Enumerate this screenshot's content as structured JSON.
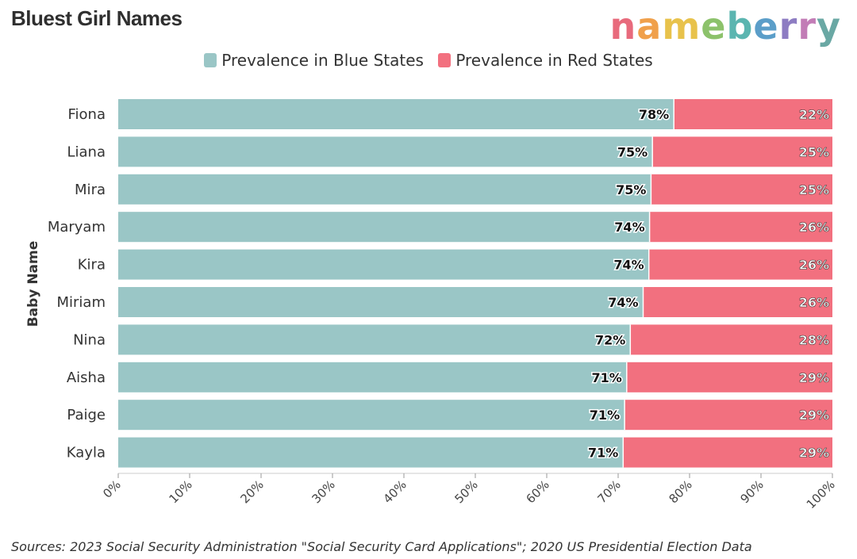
{
  "title": "Bluest Girl Names",
  "logo": {
    "text": "nameberry",
    "letters": [
      {
        "ch": "n",
        "color": "#e86a7c"
      },
      {
        "ch": "a",
        "color": "#f0a04b"
      },
      {
        "ch": "m",
        "color": "#e8c24b"
      },
      {
        "ch": "e",
        "color": "#8cc26b"
      },
      {
        "ch": "b",
        "color": "#5bb5b0"
      },
      {
        "ch": "e",
        "color": "#5b9ec9"
      },
      {
        "ch": "r",
        "color": "#8d7cc2"
      },
      {
        "ch": "r",
        "color": "#c27cb6"
      },
      {
        "ch": "y",
        "color": "#6aa8a4"
      }
    ]
  },
  "legend": {
    "blue_label": "Prevalence in Blue States",
    "red_label": "Prevalence in Red States"
  },
  "source": "Sources: 2023 Social Security Administration \"Social Security Card Applications\"; 2020 US Presidential Election Data",
  "colors": {
    "blue": "#9ac6c6",
    "red": "#f2707f"
  },
  "chart_data": {
    "type": "bar",
    "orientation": "horizontal",
    "stacked": true,
    "title": "Bluest Girl Names",
    "ylabel": "Baby Name",
    "xlabel": "",
    "categories": [
      "Fiona",
      "Liana",
      "Mira",
      "Maryam",
      "Kira",
      "Miriam",
      "Nina",
      "Aisha",
      "Paige",
      "Kayla"
    ],
    "series": [
      {
        "name": "Prevalence in Blue States",
        "values": [
          77.8,
          74.8,
          74.6,
          74.4,
          74.3,
          73.5,
          71.7,
          71.2,
          70.9,
          70.7
        ],
        "labels": [
          "78%",
          "75%",
          "75%",
          "74%",
          "74%",
          "74%",
          "72%",
          "71%",
          "71%",
          "71%"
        ]
      },
      {
        "name": "Prevalence in Red States",
        "values": [
          22.2,
          25.2,
          25.4,
          25.6,
          25.7,
          26.5,
          28.3,
          28.8,
          29.1,
          29.3
        ],
        "labels": [
          "22%",
          "25%",
          "25%",
          "26%",
          "26%",
          "26%",
          "28%",
          "29%",
          "29%",
          "29%"
        ]
      }
    ],
    "xlim": [
      0,
      100
    ],
    "xticks": [
      "0%",
      "10%",
      "20%",
      "30%",
      "40%",
      "50%",
      "60%",
      "70%",
      "80%",
      "90%",
      "100%"
    ],
    "legend_position": "top-center",
    "grid": false
  }
}
